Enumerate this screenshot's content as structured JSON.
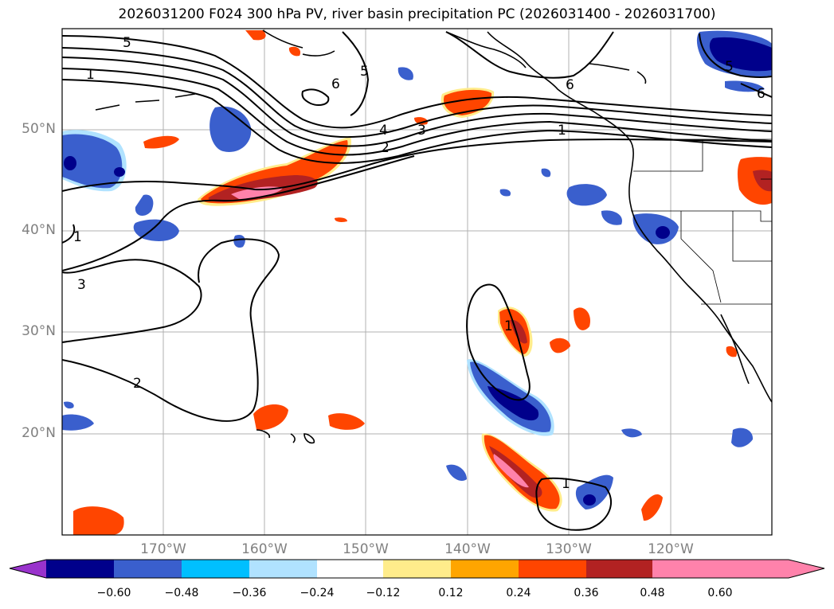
{
  "title": "2026031200 F024 300 hPa PV, river basin precipitation PC (2026031400 - 2026031700)",
  "latitude_labels": [
    "50°N",
    "40°N",
    "30°N",
    "20°N"
  ],
  "longitude_labels": [
    "170°W",
    "160°W",
    "150°W",
    "140°W",
    "130°W",
    "120°W"
  ],
  "contour_labels": [
    "5",
    "1",
    "6",
    "5",
    "6",
    "4",
    "3",
    "2",
    "1",
    "1",
    "3",
    "2",
    "1",
    "1",
    "5",
    "6"
  ],
  "colorbar": {
    "ticks": [
      "−0.60",
      "−0.48",
      "−0.36",
      "−0.24",
      "−0.12",
      "0.12",
      "0.24",
      "0.36",
      "0.48",
      "0.60"
    ],
    "colors": [
      "#9933cc",
      "#00008b",
      "#3a5fcd",
      "#00bfff",
      "#b0e2ff",
      "#ffffff",
      "#ffec8b",
      "#ffa500",
      "#ff4500",
      "#b22222",
      "#ff82ab"
    ]
  }
}
